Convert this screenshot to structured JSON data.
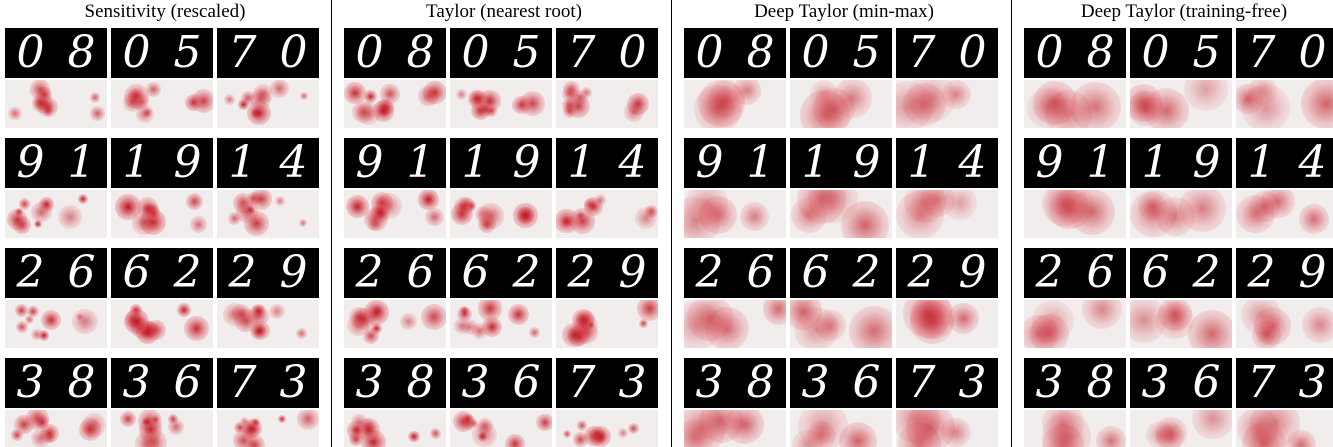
{
  "panels": [
    {
      "title": "Sensitivity (rescaled)"
    },
    {
      "title": "Taylor (nearest root)"
    },
    {
      "title": "Deep Taylor (min-max)"
    },
    {
      "title": "Deep Taylor (training-free)"
    }
  ],
  "digits": [
    [
      [
        "0",
        "8"
      ],
      [
        "0",
        "5"
      ],
      [
        "7",
        "0"
      ]
    ],
    [
      [
        "9",
        "1"
      ],
      [
        "1",
        "9"
      ],
      [
        "1",
        "4"
      ]
    ],
    [
      [
        "2",
        "6"
      ],
      [
        "6",
        "2"
      ],
      [
        "2",
        "9"
      ]
    ],
    [
      [
        "3",
        "8"
      ],
      [
        "3",
        "6"
      ],
      [
        "7",
        "3"
      ]
    ]
  ]
}
